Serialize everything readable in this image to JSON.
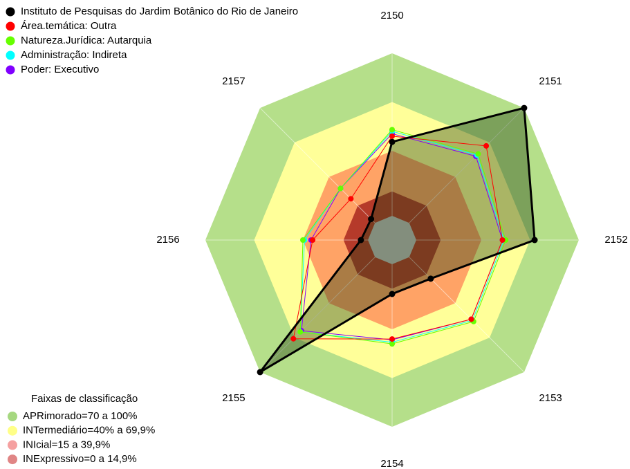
{
  "chart_data": {
    "type": "radar",
    "categories": [
      "2150",
      "2151",
      "2152",
      "2153",
      "2154",
      "2155",
      "2156",
      "2157"
    ],
    "ylim": [
      0,
      100
    ],
    "series": [
      {
        "name": "Instituto de Pesquisas do Jardim Botânico do Rio de Janeiro",
        "color": "#000000",
        "values": [
          45.5,
          100,
          72.8,
          18.7,
          18.3,
          100,
          4.3,
          3.4
        ]
      },
      {
        "name": "Área.temática: Outra",
        "color": "#ff0000",
        "values": [
          49,
          67,
          53,
          54,
          46,
          71,
          34,
          21
        ]
      },
      {
        "name": "Natureza.Jurídica: Autarquia",
        "color": "#66ff00",
        "values": [
          53,
          60,
          55,
          56,
          49,
          65,
          40,
          30
        ]
      },
      {
        "name": "Administração: Indireta",
        "color": "#00ffff",
        "values": [
          52,
          59,
          54,
          55,
          48,
          65,
          39,
          30
        ]
      },
      {
        "name": "Poder: Executivo",
        "color": "#8000ff",
        "values": [
          50.5,
          58,
          53,
          54,
          46.5,
          64,
          35,
          30
        ]
      }
    ],
    "band_legend_title": "Faixas de classificação",
    "bands": [
      {
        "name": "APRimorado=70 a 100%",
        "min": 70,
        "max": 100,
        "color": "#b5df8a",
        "legend_color": "#a6d880"
      },
      {
        "name": "INTermediário=40% a 69,9%",
        "min": 40,
        "max": 70,
        "color": "#ffff99",
        "legend_color": "#ffff88"
      },
      {
        "name": "INIcial=15 a 39,9%",
        "min": 15,
        "max": 40,
        "color": "#ffa366",
        "legend_color": "#f5a0a0"
      },
      {
        "name": "INExpressivo=0 a 14,9%",
        "min": 0,
        "max": 15,
        "color": "#b53a2a",
        "legend_color": "#e08585"
      }
    ]
  }
}
